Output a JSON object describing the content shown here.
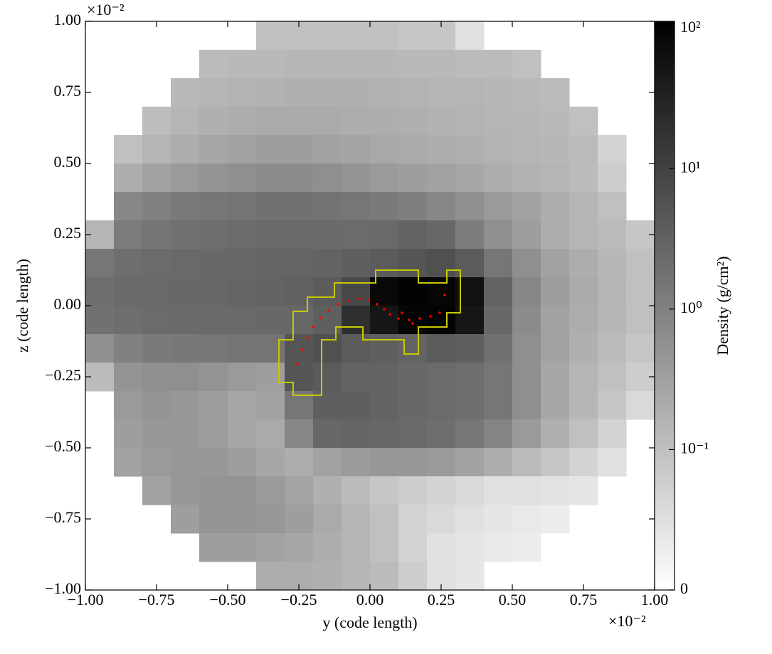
{
  "chart_data": {
    "type": "heatmap",
    "xlabel": "y  (code length)",
    "ylabel": "z  (code length)",
    "x_offset_label": "×10⁻²",
    "y_offset_label": "×10⁻²",
    "colorbar_label": "Density  (g/cm²)",
    "xlim": [
      -1,
      1
    ],
    "ylim": [
      -1,
      1
    ],
    "xticks": [
      {
        "value": -1,
        "label": "−1.00"
      },
      {
        "value": -0.75,
        "label": "−0.75"
      },
      {
        "value": -0.5,
        "label": "−0.50"
      },
      {
        "value": -0.25,
        "label": "−0.25"
      },
      {
        "value": 0,
        "label": "0.00"
      },
      {
        "value": 0.25,
        "label": "0.25"
      },
      {
        "value": 0.5,
        "label": "0.50"
      },
      {
        "value": 0.75,
        "label": "0.75"
      },
      {
        "value": 1,
        "label": "1.00"
      }
    ],
    "yticks": [
      {
        "value": -1,
        "label": "−1.00"
      },
      {
        "value": -0.75,
        "label": "−0.75"
      },
      {
        "value": -0.5,
        "label": "−0.50"
      },
      {
        "value": -0.25,
        "label": "−0.25"
      },
      {
        "value": 0,
        "label": "0.00"
      },
      {
        "value": 0.25,
        "label": "0.25"
      },
      {
        "value": 0.5,
        "label": "0.50"
      },
      {
        "value": 0.75,
        "label": "0.75"
      },
      {
        "value": 1,
        "label": "1.00"
      }
    ],
    "color_scale": "symlog",
    "linthresh": 0.1,
    "clim": [
      0,
      112
    ],
    "cticks": [
      0,
      {
        "value": 0.1,
        "label": "10⁻¹"
      },
      {
        "value": 1,
        "label": "10⁰"
      },
      {
        "value": 10,
        "label": "10¹"
      },
      {
        "value": 100,
        "label": "10²"
      }
    ],
    "x_edges": [
      -1,
      -0.9,
      -0.8,
      -0.7,
      -0.6,
      -0.5,
      -0.4,
      -0.3,
      -0.2,
      -0.1,
      0,
      0.1,
      0.2,
      0.3,
      0.4,
      0.5,
      0.6,
      0.7,
      0.8,
      0.9,
      1
    ],
    "y_edges": [
      1,
      0.9,
      0.8,
      0.7,
      0.6,
      0.5,
      0.4,
      0.3,
      0.2,
      0.1,
      0,
      -0.1,
      -0.2,
      -0.3,
      -0.4,
      -0.5,
      -0.6,
      -0.7,
      -0.8,
      -0.9,
      -1
    ],
    "values": [
      [
        null,
        null,
        null,
        null,
        null,
        null,
        0.1,
        0.1,
        0.1,
        0.1,
        0.1,
        0.09,
        0.09,
        0.05,
        null,
        null,
        null,
        null,
        null,
        null
      ],
      [
        null,
        null,
        null,
        null,
        0.12,
        0.13,
        0.13,
        0.14,
        0.14,
        0.14,
        0.14,
        0.13,
        0.13,
        0.12,
        0.12,
        0.1,
        null,
        null,
        null,
        null
      ],
      [
        null,
        null,
        null,
        0.13,
        0.15,
        0.16,
        0.17,
        0.18,
        0.18,
        0.18,
        0.17,
        0.16,
        0.15,
        0.15,
        0.14,
        0.13,
        0.12,
        null,
        null,
        null
      ],
      [
        null,
        null,
        0.11,
        0.15,
        0.18,
        0.2,
        0.22,
        0.22,
        0.22,
        0.2,
        0.19,
        0.18,
        0.17,
        0.16,
        0.15,
        0.14,
        0.13,
        0.1,
        null,
        null
      ],
      [
        null,
        0.1,
        0.15,
        0.2,
        0.25,
        0.3,
        0.35,
        0.35,
        0.3,
        0.27,
        0.24,
        0.22,
        0.2,
        0.18,
        0.16,
        0.15,
        0.14,
        0.12,
        0.07,
        null
      ],
      [
        null,
        0.2,
        0.3,
        0.4,
        0.5,
        0.6,
        0.7,
        0.7,
        0.6,
        0.5,
        0.4,
        0.35,
        0.3,
        0.25,
        0.2,
        0.17,
        0.15,
        0.12,
        0.08,
        null
      ],
      [
        null,
        0.8,
        1.0,
        1.3,
        1.5,
        1.6,
        1.8,
        1.8,
        1.7,
        1.5,
        1.3,
        1.1,
        0.8,
        0.6,
        0.4,
        0.3,
        0.2,
        0.15,
        0.1,
        null
      ],
      [
        0.15,
        1.2,
        1.6,
        1.8,
        2.0,
        2.2,
        2.4,
        2.4,
        2.3,
        2.2,
        2.4,
        3.0,
        2.5,
        1.2,
        0.6,
        0.35,
        0.2,
        0.15,
        0.12,
        0.09
      ],
      [
        1.5,
        2.0,
        2.2,
        2.4,
        2.5,
        2.6,
        2.8,
        2.8,
        3.0,
        3.5,
        4.0,
        5.0,
        6.0,
        4.0,
        1.5,
        0.6,
        0.3,
        0.2,
        0.14,
        0.1
      ],
      [
        2.0,
        2.3,
        2.4,
        2.5,
        2.6,
        2.8,
        3.0,
        3.2,
        4.0,
        8.0,
        80,
        100,
        90,
        60,
        3.0,
        0.8,
        0.35,
        0.22,
        0.15,
        0.1
      ],
      [
        1.8,
        2.0,
        2.2,
        2.3,
        2.3,
        2.4,
        2.5,
        2.6,
        3.5,
        20,
        50,
        90,
        100,
        50,
        2.5,
        0.7,
        0.3,
        0.2,
        0.14,
        0.1
      ],
      [
        0.6,
        1.0,
        1.3,
        1.4,
        1.5,
        1.6,
        1.6,
        5.0,
        6.0,
        4.0,
        3.5,
        3.0,
        4.0,
        3.5,
        1.8,
        0.6,
        0.3,
        0.18,
        0.12,
        0.09
      ],
      [
        0.12,
        0.5,
        0.6,
        0.6,
        0.5,
        0.4,
        0.35,
        5.0,
        4.0,
        3.0,
        3.0,
        2.5,
        2.2,
        2.0,
        1.5,
        0.6,
        0.25,
        0.15,
        0.1,
        0.08
      ],
      [
        null,
        0.4,
        0.5,
        0.45,
        0.35,
        0.25,
        0.3,
        1.5,
        3.5,
        3.5,
        3.0,
        2.5,
        2.2,
        2.0,
        1.5,
        0.6,
        0.25,
        0.14,
        0.09,
        0.06
      ],
      [
        null,
        0.35,
        0.45,
        0.45,
        0.35,
        0.25,
        0.22,
        0.8,
        2.5,
        2.8,
        2.6,
        2.4,
        2.0,
        1.5,
        0.9,
        0.4,
        0.18,
        0.1,
        0.07,
        null
      ],
      [
        null,
        0.3,
        0.4,
        0.45,
        0.45,
        0.35,
        0.25,
        0.2,
        0.3,
        0.4,
        0.45,
        0.45,
        0.4,
        0.3,
        0.2,
        0.12,
        0.09,
        0.07,
        0.05,
        null
      ],
      [
        null,
        null,
        0.3,
        0.45,
        0.5,
        0.5,
        0.4,
        0.28,
        0.18,
        0.12,
        0.09,
        0.08,
        0.07,
        0.06,
        0.05,
        0.05,
        0.045,
        0.04,
        null,
        null
      ],
      [
        null,
        null,
        null,
        0.35,
        0.5,
        0.5,
        0.45,
        0.35,
        0.22,
        0.15,
        0.1,
        0.07,
        0.06,
        0.05,
        0.04,
        0.035,
        0.03,
        null,
        null,
        null
      ],
      [
        null,
        null,
        null,
        null,
        0.35,
        0.35,
        0.3,
        0.25,
        0.2,
        0.15,
        0.1,
        0.07,
        0.05,
        0.04,
        0.035,
        0.03,
        null,
        null,
        null,
        null
      ],
      [
        null,
        null,
        null,
        null,
        null,
        null,
        0.2,
        0.2,
        0.18,
        0.15,
        0.12,
        0.08,
        0.05,
        0.04,
        null,
        null,
        null,
        null,
        null,
        null
      ]
    ],
    "contour": {
      "color": "#c8c800",
      "x": [
        0.02,
        0.17,
        0.17,
        0.27,
        0.27,
        0.3175,
        0.3175,
        0.27,
        0.27,
        0.17,
        0.17,
        0.12,
        0.12,
        -0.025,
        -0.025,
        -0.12,
        -0.12,
        -0.17,
        -0.17,
        -0.27,
        -0.27,
        -0.32,
        -0.32,
        -0.27,
        -0.27,
        -0.22,
        -0.22,
        -0.125,
        -0.125,
        0.02
      ],
      "y": [
        0.125,
        0.125,
        0.08,
        0.08,
        0.125,
        0.125,
        -0.025,
        -0.025,
        -0.075,
        -0.075,
        -0.17,
        -0.17,
        -0.12,
        -0.12,
        -0.075,
        -0.075,
        -0.12,
        -0.12,
        -0.315,
        -0.315,
        -0.27,
        -0.27,
        -0.12,
        -0.12,
        -0.02,
        -0.02,
        0.03,
        0.03,
        0.08,
        0.08
      ]
    },
    "particles": {
      "color": "#ff0000",
      "x": [
        -0.255,
        -0.2375,
        -0.22,
        -0.2,
        -0.175,
        -0.145,
        -0.1125,
        -0.075,
        -0.0375,
        -0.005,
        0.025,
        0.05,
        0.07,
        0.1,
        0.1375,
        0.175,
        0.2125,
        0.245,
        0.2625,
        0.1125,
        0.15
      ],
      "y": [
        -0.205,
        -0.155,
        -0.1125,
        -0.075,
        -0.0425,
        -0.0175,
        0.005,
        0.0175,
        0.025,
        0.02,
        0.005,
        -0.0125,
        -0.03,
        -0.045,
        -0.05,
        -0.045,
        -0.0375,
        -0.025,
        0.0375,
        -0.025,
        -0.0625
      ]
    }
  }
}
